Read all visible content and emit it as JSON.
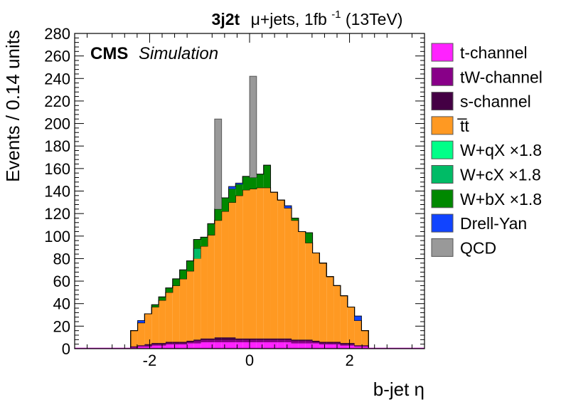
{
  "chart_data": {
    "type": "bar",
    "stacked": true,
    "histogram": true,
    "title": {
      "tag": "3j2t",
      "text": "μ+jets, 1fb",
      "superscript": "-1",
      "suffix": " (13TeV)"
    },
    "label_main": "CMS",
    "label_sub": "Simulation",
    "xlabel": "b-jet η",
    "ylabel": "Events / 0.14 units",
    "xlim": [
      -3.5,
      3.5
    ],
    "ylim": [
      0,
      280
    ],
    "bin_width": 0.14,
    "xticks": [
      -2,
      0,
      2
    ],
    "xtick_labels": [
      "-2",
      "0",
      "2"
    ],
    "yticks": [
      0,
      20,
      40,
      60,
      80,
      100,
      120,
      140,
      160,
      180,
      200,
      220,
      240,
      260,
      280
    ],
    "ytick_labels": [
      "0",
      "20",
      "40",
      "60",
      "80",
      "100",
      "120",
      "140",
      "160",
      "180",
      "200",
      "220",
      "240",
      "260",
      "280"
    ],
    "grid": false,
    "legend_position": "right",
    "x_edges": [
      -2.38,
      -2.24,
      -2.1,
      -1.96,
      -1.82,
      -1.68,
      -1.54,
      -1.4,
      -1.26,
      -1.12,
      -0.98,
      -0.84,
      -0.7,
      -0.56,
      -0.42,
      -0.28,
      -0.14,
      0.0,
      0.14,
      0.28,
      0.42,
      0.56,
      0.7,
      0.84,
      0.98,
      1.12,
      1.26,
      1.4,
      1.54,
      1.68,
      1.82,
      1.96,
      2.1,
      2.24,
      2.38
    ],
    "series": [
      {
        "name": "t-channel",
        "color": "#ff22ff",
        "values": [
          1,
          2,
          2,
          3,
          3,
          4,
          4,
          4,
          5,
          5,
          6,
          6,
          6,
          6,
          6,
          6,
          6,
          6,
          6,
          6,
          6,
          6,
          6,
          5,
          5,
          5,
          5,
          4,
          4,
          4,
          3,
          3,
          2,
          2
        ]
      },
      {
        "name": "tW-channel",
        "color": "#880088",
        "values": [
          1,
          1,
          1,
          1,
          1,
          1,
          1,
          1,
          1,
          2,
          2,
          2,
          2,
          2,
          2,
          2,
          2,
          2,
          2,
          2,
          2,
          2,
          2,
          2,
          2,
          2,
          1,
          1,
          1,
          1,
          1,
          1,
          1,
          1
        ]
      },
      {
        "name": "s-channel",
        "color": "#440044",
        "values": [
          0,
          0,
          1,
          1,
          1,
          1,
          1,
          1,
          1,
          1,
          1,
          1,
          2,
          2,
          2,
          1,
          1,
          1,
          1,
          1,
          1,
          1,
          1,
          1,
          1,
          1,
          1,
          1,
          1,
          1,
          1,
          1,
          0,
          0
        ]
      },
      {
        "name": "t̅t",
        "color": "#ff9922",
        "values": [
          14,
          20,
          27,
          32,
          38,
          44,
          50,
          56,
          62,
          72,
          82,
          92,
          104,
          112,
          120,
          127,
          132,
          133,
          134,
          134,
          130,
          123,
          116,
          106,
          96,
          86,
          78,
          70,
          58,
          50,
          42,
          32,
          22,
          13
        ]
      },
      {
        "name": "W+qX ×1.8",
        "color": "#00ff88",
        "values": [
          0,
          0,
          0,
          0,
          0,
          0,
          0,
          0,
          0,
          1,
          0,
          0,
          0,
          0,
          0,
          0,
          0,
          0,
          0,
          0,
          0,
          0,
          0,
          0,
          0,
          0,
          0,
          0,
          0,
          0,
          0,
          0,
          0,
          0
        ]
      },
      {
        "name": "W+cX ×1.8",
        "color": "#00bb66",
        "values": [
          0,
          0,
          0,
          0,
          0,
          0,
          0,
          0,
          0,
          8,
          0,
          0,
          0,
          0,
          0,
          0,
          0,
          0,
          0,
          0,
          0,
          0,
          0,
          0,
          0,
          0,
          0,
          0,
          0,
          0,
          0,
          0,
          0,
          0
        ]
      },
      {
        "name": "W+bX ×1.8",
        "color": "#008800",
        "values": [
          0,
          0,
          0,
          2,
          3,
          4,
          6,
          8,
          9,
          8,
          8,
          10,
          10,
          12,
          12,
          10,
          12,
          10,
          12,
          20,
          0,
          0,
          0,
          2,
          0,
          9,
          0,
          0,
          0,
          0,
          0,
          0,
          0,
          0
        ]
      },
      {
        "name": "Drell-Yan",
        "color": "#1144ff",
        "values": [
          0,
          2,
          0,
          0,
          0,
          0,
          0,
          0,
          0,
          0,
          0,
          0,
          0,
          0,
          2,
          1,
          0,
          0,
          0,
          0,
          0,
          0,
          2,
          0,
          0,
          0,
          0,
          0,
          0,
          0,
          0,
          0,
          4,
          0
        ]
      },
      {
        "name": "QCD",
        "color": "#999999",
        "values": [
          0,
          0,
          0,
          0,
          0,
          0,
          0,
          0,
          0,
          0,
          0,
          0,
          80,
          0,
          0,
          0,
          0,
          90,
          0,
          0,
          0,
          0,
          0,
          0,
          0,
          0,
          0,
          0,
          0,
          0,
          0,
          0,
          0,
          0
        ]
      }
    ]
  }
}
